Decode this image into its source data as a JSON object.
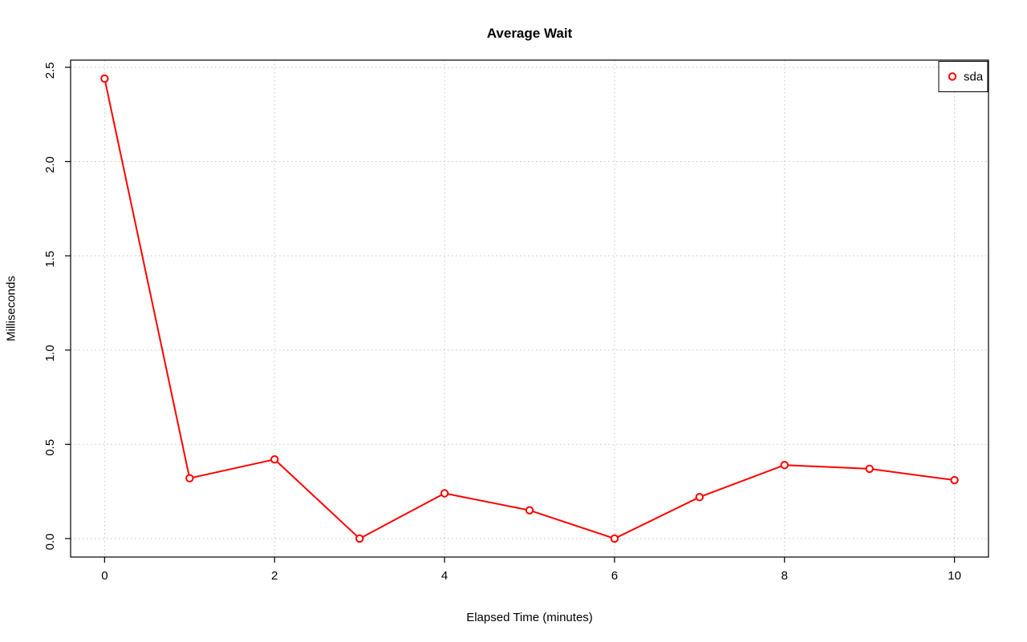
{
  "chart": {
    "title": "Average Wait",
    "xlabel": "Elapsed Time (minutes)",
    "ylabel": "Milliseconds"
  },
  "chart_data": {
    "type": "line",
    "title": "Average Wait",
    "xlabel": "Elapsed Time (minutes)",
    "ylabel": "Milliseconds",
    "x": [
      0,
      1,
      2,
      3,
      4,
      5,
      6,
      7,
      8,
      9,
      10
    ],
    "series": [
      {
        "name": "sda",
        "color": "#ff0000",
        "marker": "open-circle",
        "values": [
          2.44,
          0.32,
          0.42,
          0.0,
          0.24,
          0.15,
          0.0,
          0.22,
          0.39,
          0.37,
          0.31
        ]
      }
    ],
    "xticks": [
      0,
      2,
      4,
      6,
      8,
      10
    ],
    "xtick_labels": [
      "0",
      "2",
      "4",
      "6",
      "8",
      "10"
    ],
    "yticks": [
      0,
      0.5,
      1.0,
      1.5,
      2.0,
      2.5
    ],
    "ytick_labels": [
      "0.0",
      "0.5",
      "1.0",
      "1.5",
      "2.0",
      "2.5"
    ],
    "xlim": [
      -0.4,
      10.4
    ],
    "ylim": [
      -0.098,
      2.538
    ],
    "grid": true,
    "grid_style": "dotted",
    "grid_color": "#c6c6c6",
    "legend_position": "top-right",
    "legend_entries": [
      "sda"
    ]
  }
}
